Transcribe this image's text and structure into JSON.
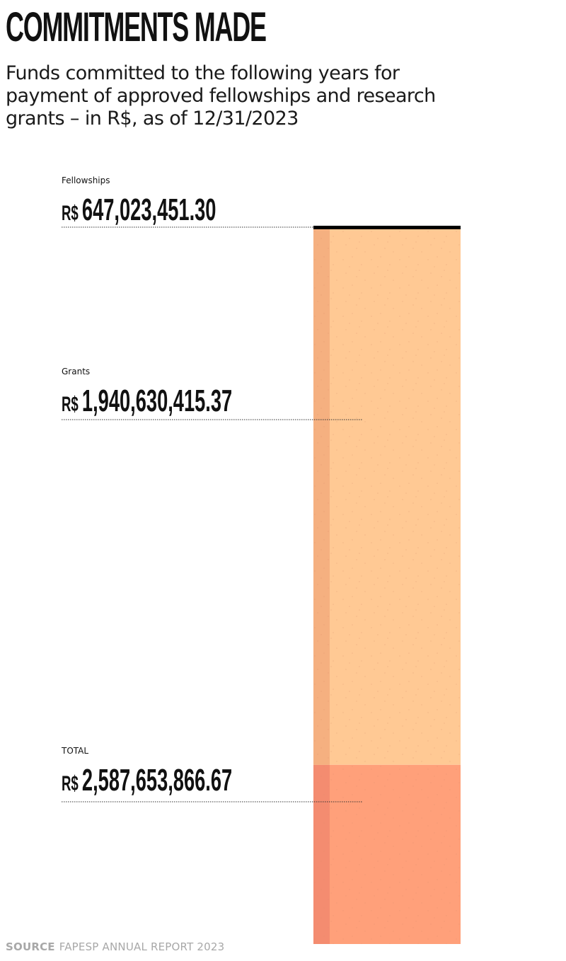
{
  "title": "COMMITMENTS MADE",
  "subtitle": "Funds committed to the following years for payment of approved fellowships and research grants – in R$, as of 12/31/2023",
  "source": {
    "label": "SOURCE",
    "text": "FAPESP ANNUAL REPORT 2023"
  },
  "chart_data": {
    "type": "bar",
    "orientation": "vertical-stacked",
    "title": "COMMITMENTS MADE",
    "currency_symbol": "R$",
    "series": [
      {
        "key": "fellowships",
        "name": "Fellowships",
        "display_value": "647,023,451.30",
        "value": 647023451.3,
        "color": "#ffa07a",
        "edge_color": "#f48c70"
      },
      {
        "key": "grants",
        "name": "Grants",
        "display_value": "1,940,630,415.37",
        "value": 1940630415.37,
        "color": "#ffc994",
        "edge_color": "#f5b080"
      }
    ],
    "total": {
      "name": "TOTAL",
      "display_value": "2,587,653,866.67",
      "value": 2587653866.67
    },
    "top_line_color": "#000000"
  }
}
